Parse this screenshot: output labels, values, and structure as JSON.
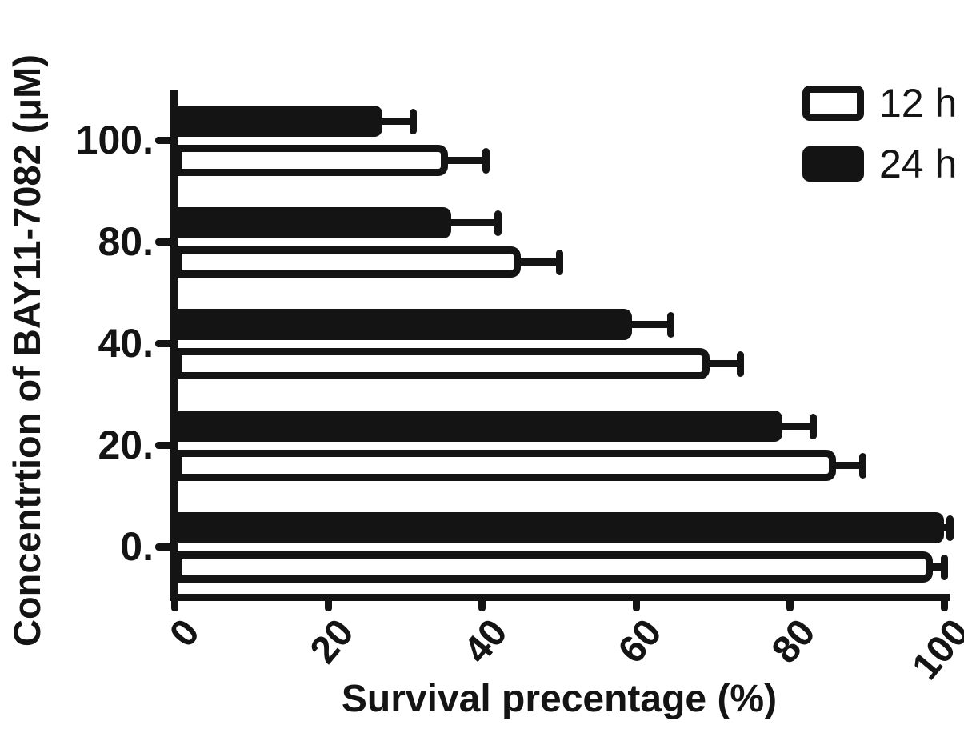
{
  "figure": {
    "background": "#ffffff",
    "ink_color": "#141414"
  },
  "chart_data": {
    "type": "bar",
    "orientation": "horizontal",
    "title": "",
    "xlabel": "Survival precentage (%)",
    "ylabel": "Concentrtion of BAY11-7082 (μM)",
    "xlim": [
      0,
      100
    ],
    "x_ticks": [
      0,
      20,
      40,
      60,
      80,
      100
    ],
    "categories": [
      "100.",
      "80.",
      "40.",
      "20.",
      "0."
    ],
    "series": [
      {
        "name": "12 h",
        "fill": "#ffffff",
        "outline": "#141414",
        "values": [
          35.5,
          45,
          69.5,
          86,
          98.5
        ],
        "errors_plus": [
          5,
          5,
          4,
          3.5,
          1.5
        ]
      },
      {
        "name": "24 h",
        "fill": "#141414",
        "outline": "#141414",
        "values": [
          27,
          36,
          59.5,
          79,
          100
        ],
        "errors_plus": [
          4,
          6,
          5,
          4,
          0.8
        ]
      }
    ],
    "legend_position": "top-right",
    "grid": false
  }
}
